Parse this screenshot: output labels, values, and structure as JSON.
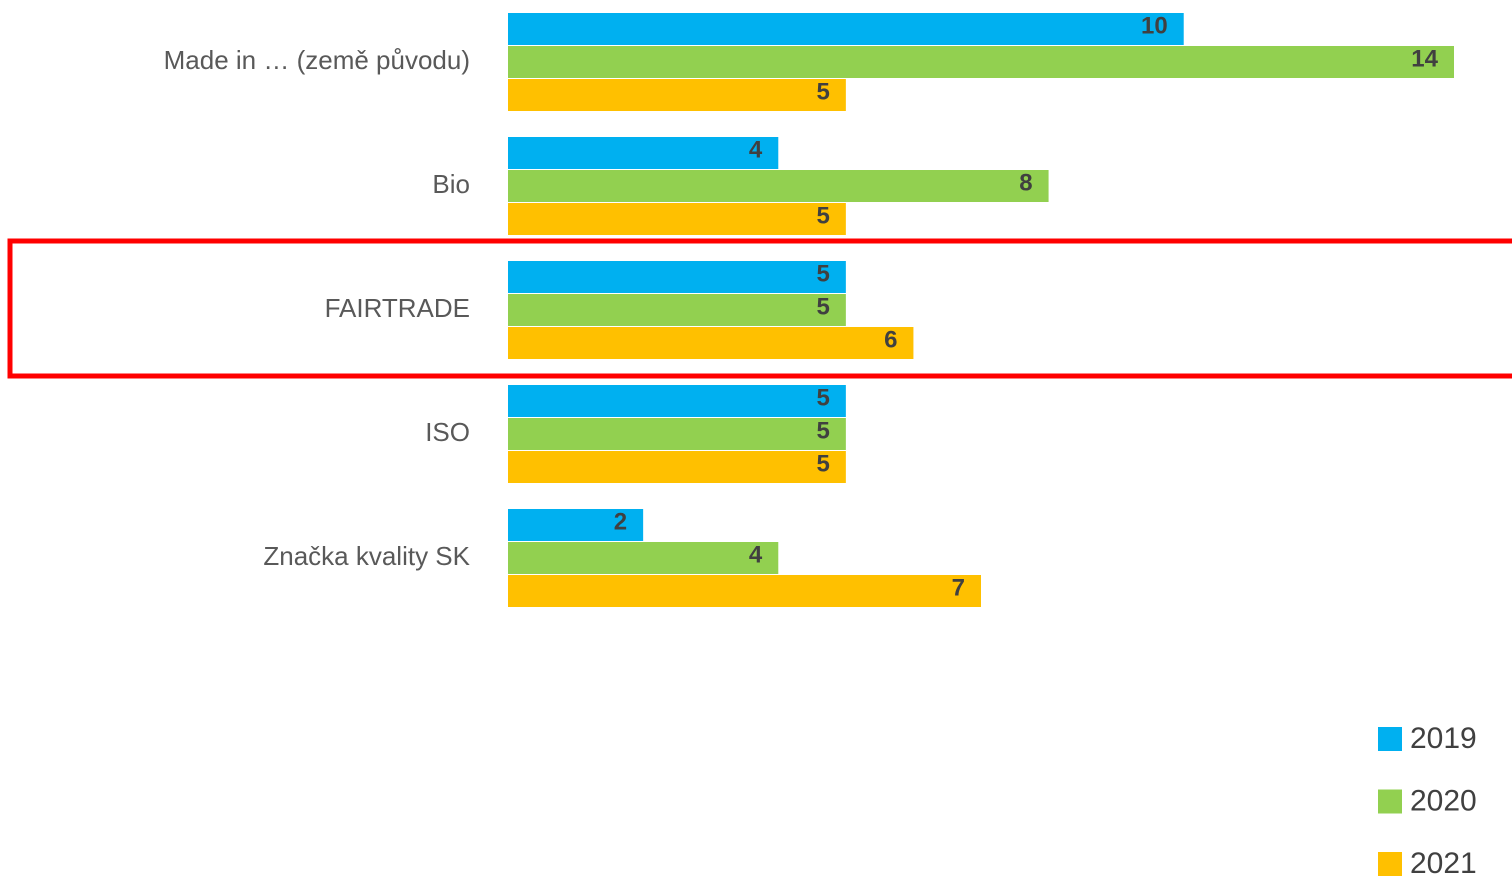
{
  "chart_data": {
    "type": "barh",
    "categories": [
      "Made in … (země původu)",
      "Bio",
      "FAIRTRADE",
      "ISO",
      "Značka kvality SK"
    ],
    "series": [
      {
        "name": "2019",
        "color": "#00b0f0",
        "values": [
          10,
          4,
          5,
          5,
          2
        ]
      },
      {
        "name": "2020",
        "color": "#92d050",
        "values": [
          14,
          8,
          5,
          5,
          4
        ]
      },
      {
        "name": "2021",
        "color": "#ffc000",
        "values": [
          5,
          5,
          6,
          5,
          7
        ]
      }
    ],
    "xlim": [
      0,
      14
    ],
    "legend": "bottom-right"
  }
}
